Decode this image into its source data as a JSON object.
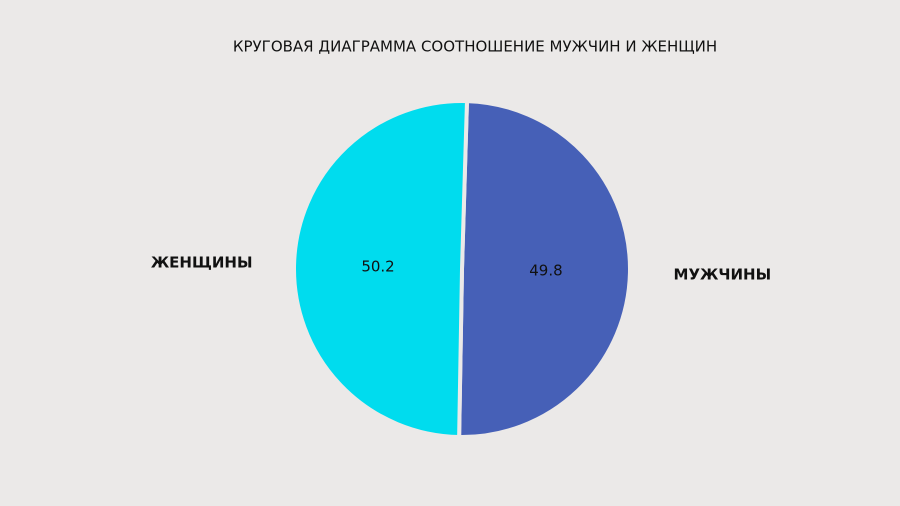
{
  "chart_data": {
    "type": "pie",
    "title": "КРУГОВАЯ ДИАГРАММА СООТНОШЕНИЕ МУЖЧИН И ЖЕНЩИН",
    "categories": [
      "МУЖЧИНЫ",
      "ЖЕНЩИНЫ"
    ],
    "values": [
      49.8,
      50.2
    ],
    "colors": [
      "#4660b7",
      "#00dcee"
    ]
  }
}
